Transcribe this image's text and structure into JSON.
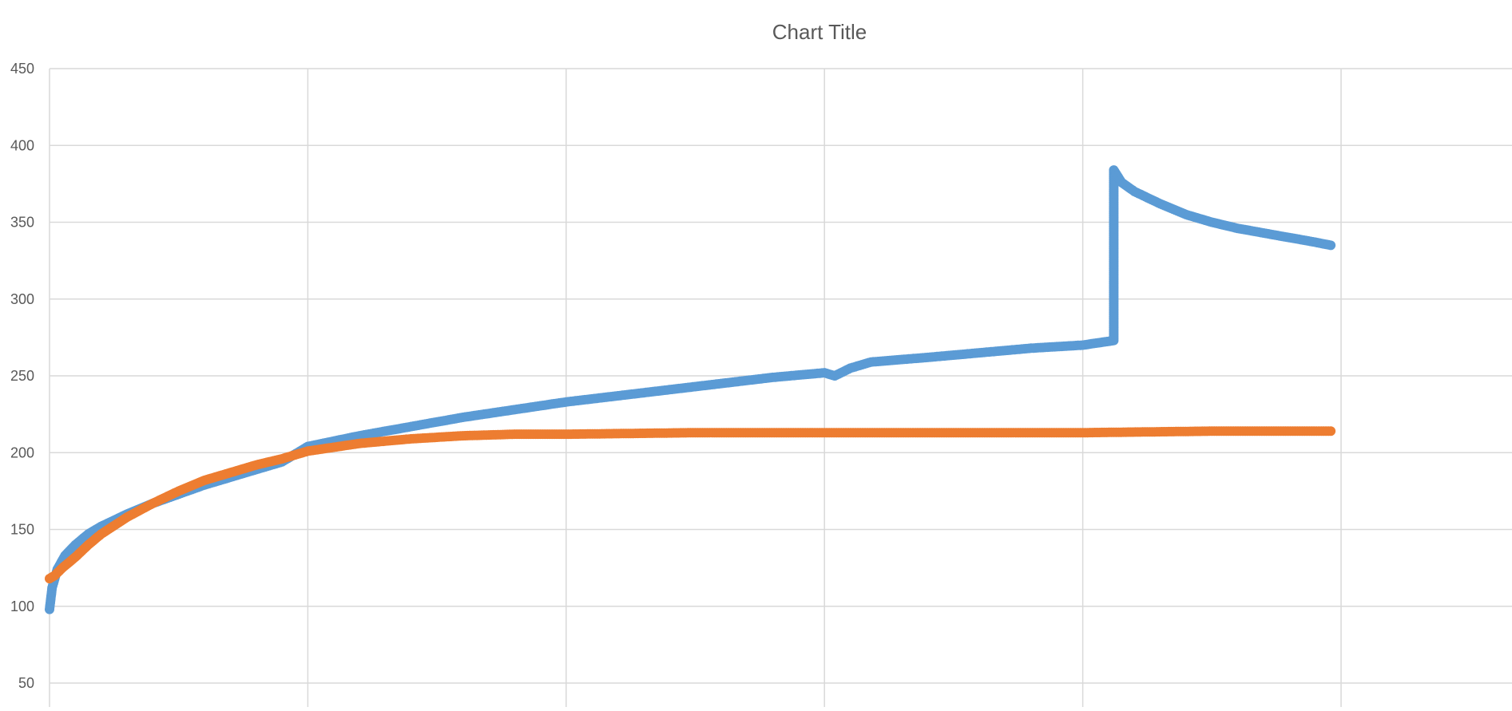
{
  "chart_data": {
    "type": "scatter",
    "title": "Chart Title",
    "xlabel": "",
    "ylabel": "",
    "ylim": [
      50,
      450
    ],
    "xlim": [
      0,
      6
    ],
    "y_ticks": [
      "450",
      "400",
      "350",
      "300",
      "250",
      "200",
      "150",
      "100",
      "50"
    ],
    "x_gridlines": [
      0,
      1,
      2,
      3,
      4,
      5
    ],
    "grid": true,
    "legend": "none",
    "series": [
      {
        "color": "#5B9BD5",
        "points": [
          [
            0.0,
            98
          ],
          [
            0.01,
            112
          ],
          [
            0.03,
            124
          ],
          [
            0.06,
            133
          ],
          [
            0.1,
            140
          ],
          [
            0.15,
            147
          ],
          [
            0.2,
            152
          ],
          [
            0.3,
            160
          ],
          [
            0.4,
            167
          ],
          [
            0.5,
            173
          ],
          [
            0.6,
            179
          ],
          [
            0.7,
            184
          ],
          [
            0.8,
            189
          ],
          [
            0.9,
            194
          ],
          [
            1.0,
            204
          ],
          [
            1.2,
            211
          ],
          [
            1.4,
            217
          ],
          [
            1.6,
            223
          ],
          [
            1.8,
            228
          ],
          [
            2.0,
            233
          ],
          [
            2.2,
            237
          ],
          [
            2.4,
            241
          ],
          [
            2.6,
            245
          ],
          [
            2.8,
            249
          ],
          [
            3.0,
            252
          ],
          [
            3.04,
            250
          ],
          [
            3.1,
            255
          ],
          [
            3.18,
            259
          ],
          [
            3.4,
            262
          ],
          [
            3.6,
            265
          ],
          [
            3.8,
            268
          ],
          [
            4.0,
            270
          ],
          [
            4.12,
            273
          ],
          [
            4.12,
            280
          ],
          [
            4.12,
            290
          ],
          [
            4.12,
            300
          ],
          [
            4.12,
            310
          ],
          [
            4.12,
            320
          ],
          [
            4.12,
            330
          ],
          [
            4.12,
            340
          ],
          [
            4.12,
            350
          ],
          [
            4.12,
            360
          ],
          [
            4.12,
            370
          ],
          [
            4.12,
            380
          ],
          [
            4.12,
            384
          ],
          [
            4.15,
            376
          ],
          [
            4.2,
            370
          ],
          [
            4.3,
            362
          ],
          [
            4.4,
            355
          ],
          [
            4.5,
            350
          ],
          [
            4.6,
            346
          ],
          [
            4.7,
            343
          ],
          [
            4.8,
            340
          ],
          [
            4.9,
            337
          ],
          [
            4.96,
            335
          ]
        ]
      },
      {
        "color": "#ED7D31",
        "points": [
          [
            0.0,
            118
          ],
          [
            0.02,
            120
          ],
          [
            0.05,
            125
          ],
          [
            0.1,
            132
          ],
          [
            0.15,
            140
          ],
          [
            0.2,
            147
          ],
          [
            0.3,
            158
          ],
          [
            0.4,
            167
          ],
          [
            0.5,
            175
          ],
          [
            0.6,
            182
          ],
          [
            0.7,
            187
          ],
          [
            0.8,
            192
          ],
          [
            0.9,
            196
          ],
          [
            1.0,
            201
          ],
          [
            1.2,
            206
          ],
          [
            1.4,
            209
          ],
          [
            1.6,
            211
          ],
          [
            1.8,
            212
          ],
          [
            2.0,
            212
          ],
          [
            2.5,
            213
          ],
          [
            3.0,
            213
          ],
          [
            3.5,
            213
          ],
          [
            4.0,
            213
          ],
          [
            4.5,
            214
          ],
          [
            4.96,
            214
          ]
        ]
      }
    ]
  }
}
